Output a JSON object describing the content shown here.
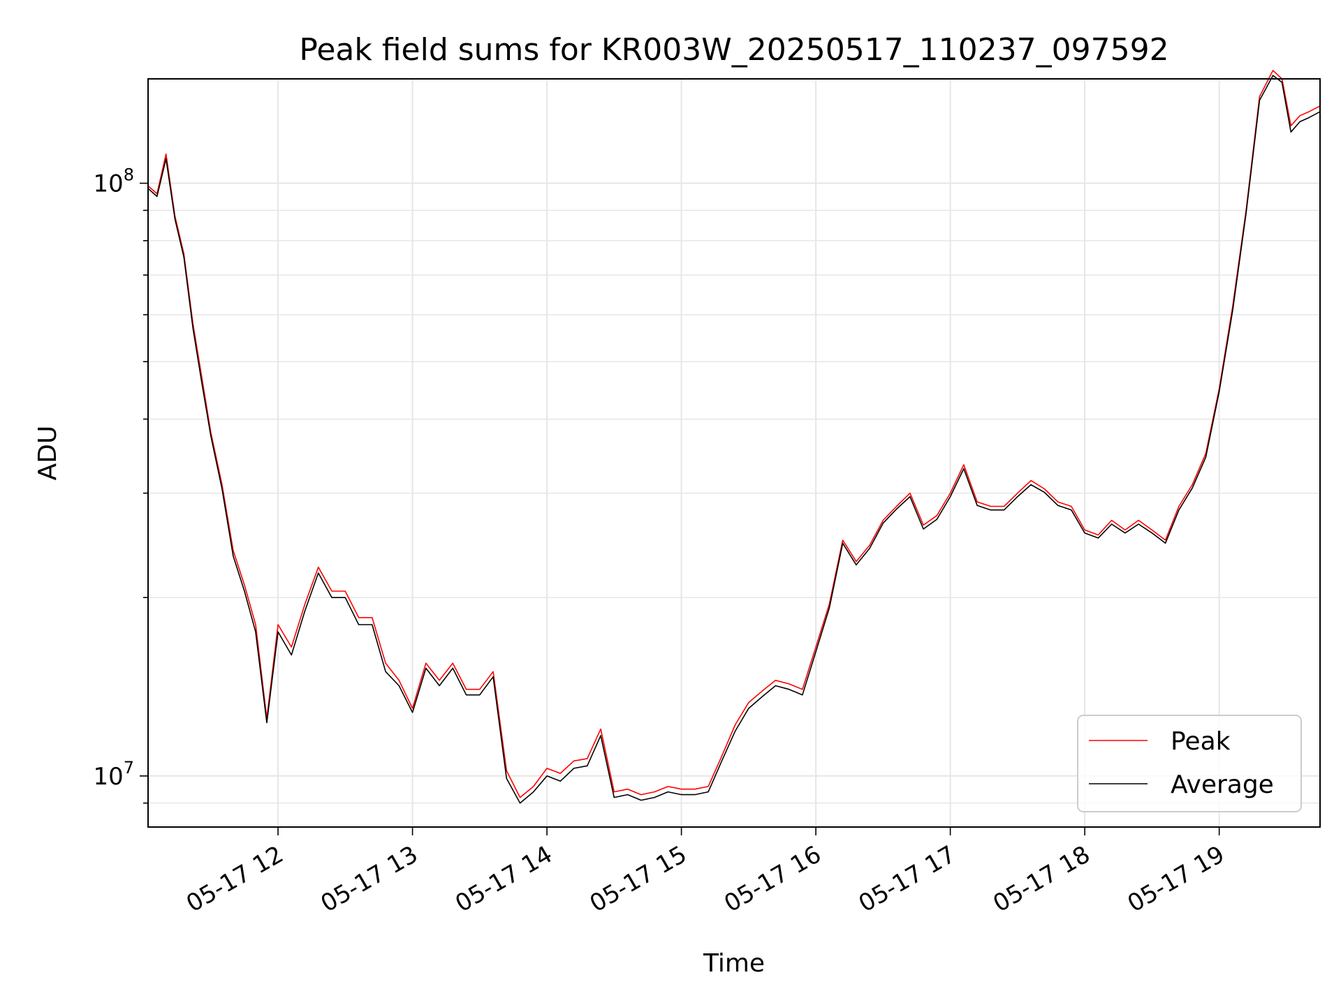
{
  "chart_data": {
    "type": "line",
    "title": "Peak field sums for KR003W_20250517_110237_097592",
    "xlabel": "Time",
    "ylabel": "ADU",
    "yscale": "log",
    "ylim": [
      8200000,
      150000000
    ],
    "xlim": [
      "2025-05-17 11:02",
      "2025-05-17 19:45"
    ],
    "grid": true,
    "legend_position": "lower-right",
    "x_ticks": [
      "05-17 12",
      "05-17 13",
      "05-17 14",
      "05-17 15",
      "05-17 16",
      "05-17 17",
      "05-17 18",
      "05-17 19"
    ],
    "y_ticks": [
      {
        "label": "10",
        "exp": "7",
        "value": 10000000
      },
      {
        "label": "10",
        "exp": "8",
        "value": 100000000
      }
    ],
    "x": [
      "2025-05-17 11:02",
      "2025-05-17 11:06",
      "2025-05-17 11:10",
      "2025-05-17 11:14",
      "2025-05-17 11:18",
      "2025-05-17 11:22",
      "2025-05-17 11:26",
      "2025-05-17 11:30",
      "2025-05-17 11:35",
      "2025-05-17 11:40",
      "2025-05-17 11:45",
      "2025-05-17 11:50",
      "2025-05-17 11:55",
      "2025-05-17 12:00",
      "2025-05-17 12:06",
      "2025-05-17 12:12",
      "2025-05-17 12:18",
      "2025-05-17 12:24",
      "2025-05-17 12:30",
      "2025-05-17 12:36",
      "2025-05-17 12:42",
      "2025-05-17 12:48",
      "2025-05-17 12:54",
      "2025-05-17 13:00",
      "2025-05-17 13:06",
      "2025-05-17 13:12",
      "2025-05-17 13:18",
      "2025-05-17 13:24",
      "2025-05-17 13:30",
      "2025-05-17 13:36",
      "2025-05-17 13:42",
      "2025-05-17 13:48",
      "2025-05-17 13:54",
      "2025-05-17 14:00",
      "2025-05-17 14:06",
      "2025-05-17 14:12",
      "2025-05-17 14:18",
      "2025-05-17 14:24",
      "2025-05-17 14:30",
      "2025-05-17 14:36",
      "2025-05-17 14:42",
      "2025-05-17 14:48",
      "2025-05-17 14:54",
      "2025-05-17 15:00",
      "2025-05-17 15:06",
      "2025-05-17 15:12",
      "2025-05-17 15:18",
      "2025-05-17 15:24",
      "2025-05-17 15:30",
      "2025-05-17 15:36",
      "2025-05-17 15:42",
      "2025-05-17 15:48",
      "2025-05-17 15:54",
      "2025-05-17 16:00",
      "2025-05-17 16:06",
      "2025-05-17 16:12",
      "2025-05-17 16:18",
      "2025-05-17 16:24",
      "2025-05-17 16:30",
      "2025-05-17 16:36",
      "2025-05-17 16:42",
      "2025-05-17 16:48",
      "2025-05-17 16:54",
      "2025-05-17 17:00",
      "2025-05-17 17:06",
      "2025-05-17 17:12",
      "2025-05-17 17:18",
      "2025-05-17 17:24",
      "2025-05-17 17:30",
      "2025-05-17 17:36",
      "2025-05-17 17:42",
      "2025-05-17 17:48",
      "2025-05-17 17:54",
      "2025-05-17 18:00",
      "2025-05-17 18:06",
      "2025-05-17 18:12",
      "2025-05-17 18:18",
      "2025-05-17 18:24",
      "2025-05-17 18:30",
      "2025-05-17 18:36",
      "2025-05-17 18:42",
      "2025-05-17 18:48",
      "2025-05-17 18:54",
      "2025-05-17 19:00",
      "2025-05-17 19:06",
      "2025-05-17 19:12",
      "2025-05-17 19:18",
      "2025-05-17 19:24",
      "2025-05-17 19:28",
      "2025-05-17 19:32",
      "2025-05-17 19:36",
      "2025-05-17 19:40",
      "2025-05-17 19:45"
    ],
    "series": [
      {
        "name": "Peak",
        "color": "#ff0000",
        "values": [
          99000000,
          96000000,
          112000000,
          88000000,
          76000000,
          58000000,
          47000000,
          38000000,
          31000000,
          24000000,
          21000000,
          18000000,
          12500000,
          18000000,
          16500000,
          19500000,
          22500000,
          20500000,
          20500000,
          18500000,
          18500000,
          15500000,
          14500000,
          13000000,
          15500000,
          14500000,
          15500000,
          14000000,
          14000000,
          15000000,
          10200000,
          9200000,
          9600000,
          10300000,
          10100000,
          10600000,
          10700000,
          12000000,
          9400000,
          9500000,
          9300000,
          9400000,
          9600000,
          9500000,
          9500000,
          9600000,
          10800000,
          12200000,
          13300000,
          13900000,
          14500000,
          14300000,
          14000000,
          16500000,
          19500000,
          25000000,
          23000000,
          24500000,
          27000000,
          28500000,
          30000000,
          26500000,
          27500000,
          30000000,
          33500000,
          29000000,
          28500000,
          28500000,
          30000000,
          31500000,
          30500000,
          29000000,
          28500000,
          26000000,
          25500000,
          27000000,
          26000000,
          27000000,
          26000000,
          25000000,
          28500000,
          31000000,
          35000000,
          45000000,
          62000000,
          90000000,
          140000000,
          155000000,
          150000000,
          125000000,
          130000000,
          132000000,
          135000000
        ]
      },
      {
        "name": "Average",
        "color": "#000000",
        "values": [
          98000000,
          95000000,
          110000000,
          87000000,
          75000000,
          57000000,
          46000000,
          37500000,
          30500000,
          23500000,
          20500000,
          17500000,
          12300000,
          17500000,
          16000000,
          19000000,
          22000000,
          20000000,
          20000000,
          18000000,
          18000000,
          15000000,
          14200000,
          12800000,
          15200000,
          14200000,
          15200000,
          13700000,
          13700000,
          14700000,
          9900000,
          9000000,
          9400000,
          10000000,
          9800000,
          10300000,
          10400000,
          11700000,
          9200000,
          9300000,
          9100000,
          9200000,
          9400000,
          9300000,
          9300000,
          9400000,
          10600000,
          11900000,
          13000000,
          13600000,
          14200000,
          14000000,
          13700000,
          16200000,
          19200000,
          24700000,
          22700000,
          24200000,
          26700000,
          28200000,
          29600000,
          26100000,
          27100000,
          29600000,
          33000000,
          28600000,
          28100000,
          28100000,
          29600000,
          31000000,
          30100000,
          28600000,
          28100000,
          25700000,
          25200000,
          26600000,
          25700000,
          26600000,
          25700000,
          24700000,
          28100000,
          30600000,
          34500000,
          44500000,
          61000000,
          89000000,
          138000000,
          152000000,
          148000000,
          122000000,
          127000000,
          129000000,
          132000000
        ]
      }
    ]
  }
}
